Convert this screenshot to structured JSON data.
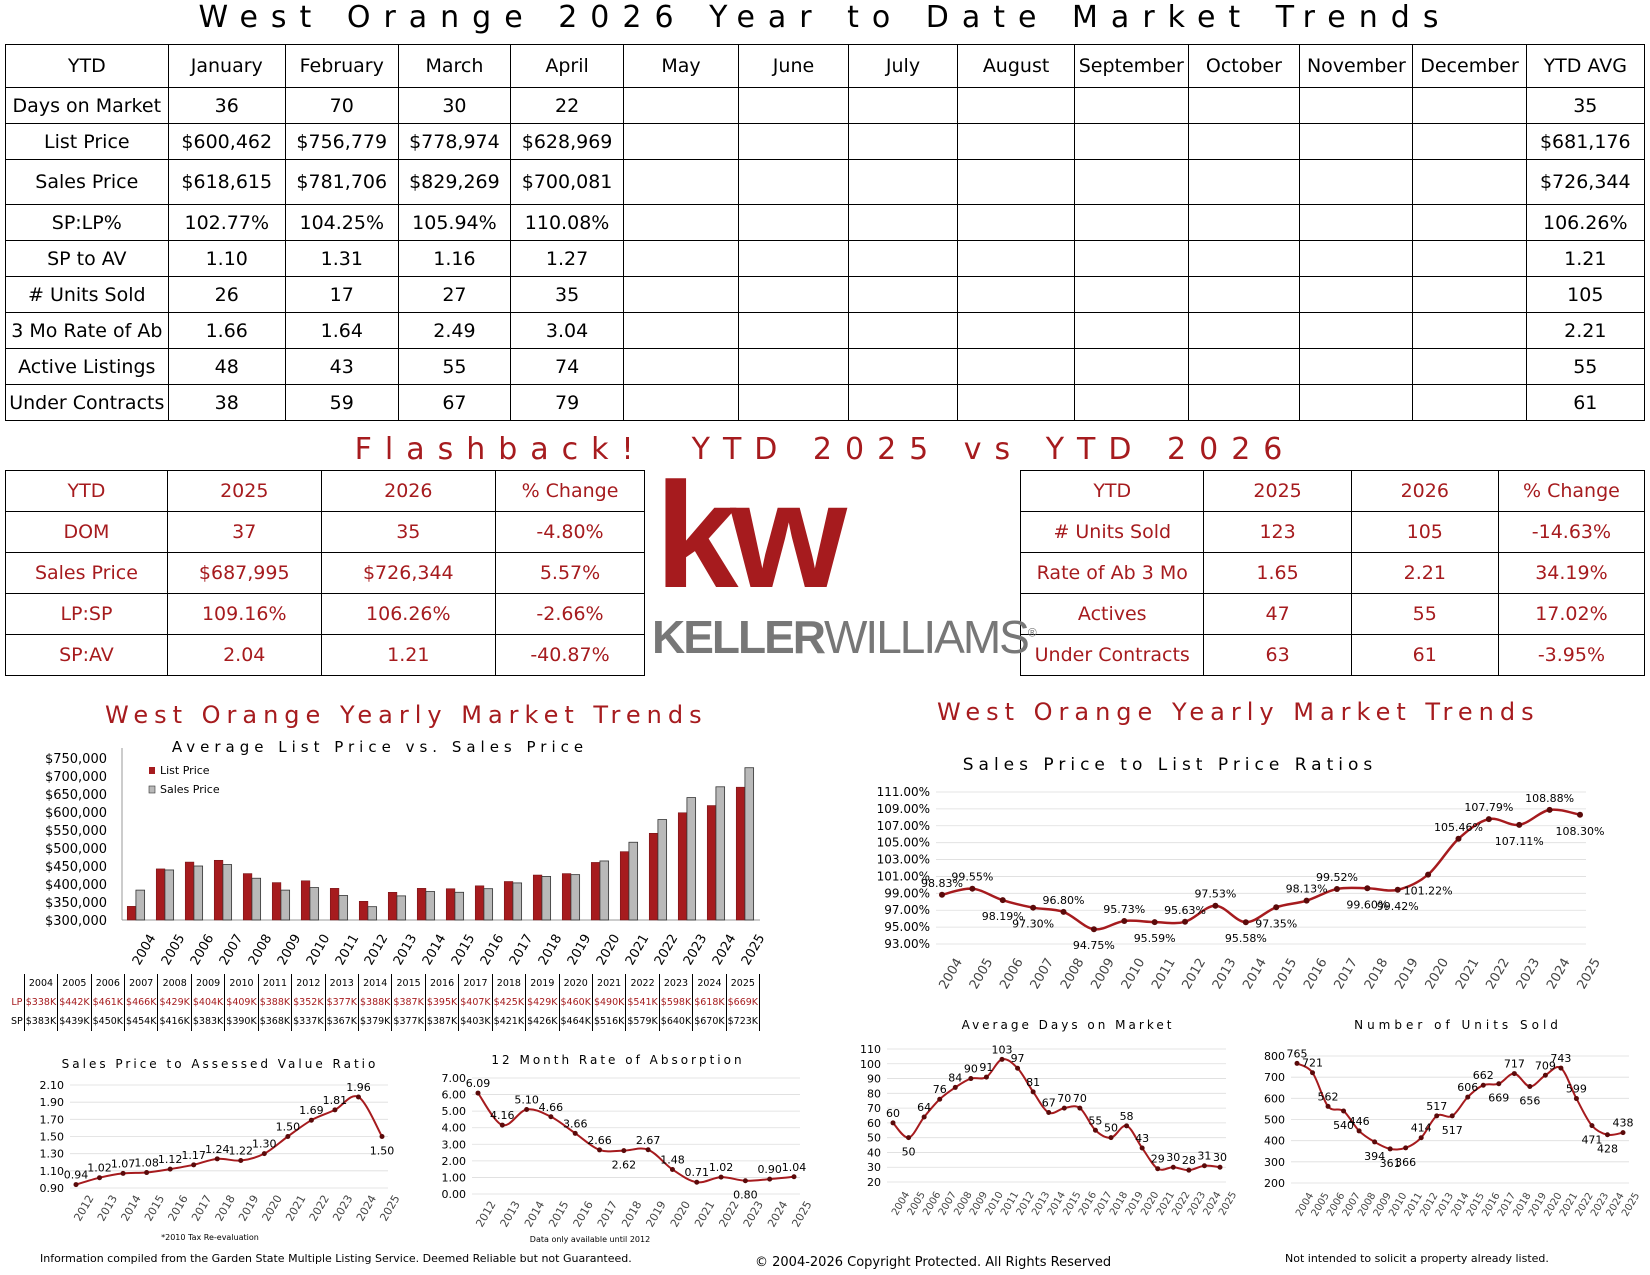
{
  "title": "West Orange 2026 Year to Date Market Trends",
  "ytd_table": {
    "headers": [
      "YTD",
      "January",
      "February",
      "March",
      "April",
      "May",
      "June",
      "July",
      "August",
      "September",
      "October",
      "November",
      "December",
      "YTD AVG"
    ],
    "rows": [
      {
        "label": "Days on Market",
        "values": [
          "36",
          "70",
          "30",
          "22",
          "",
          "",
          "",
          "",
          "",
          "",
          "",
          ""
        ],
        "avg": "35"
      },
      {
        "label": "List Price",
        "values": [
          "$600,462",
          "$756,779",
          "$778,974",
          "$628,969",
          "",
          "",
          "",
          "",
          "",
          "",
          "",
          ""
        ],
        "avg": "$681,176"
      },
      {
        "label": "Sales Price",
        "values": [
          "$618,615",
          "$781,706",
          "$829,269",
          "$700,081",
          "",
          "",
          "",
          "",
          "",
          "",
          "",
          ""
        ],
        "avg": "$726,344"
      },
      {
        "label": "SP:LP%",
        "values": [
          "102.77%",
          "104.25%",
          "105.94%",
          "110.08%",
          "",
          "",
          "",
          "",
          "",
          "",
          "",
          ""
        ],
        "avg": "106.26%"
      },
      {
        "label": "SP to AV",
        "values": [
          "1.10",
          "1.31",
          "1.16",
          "1.27",
          "",
          "",
          "",
          "",
          "",
          "",
          "",
          ""
        ],
        "avg": "1.21"
      },
      {
        "label": "# Units Sold",
        "values": [
          "26",
          "17",
          "27",
          "35",
          "",
          "",
          "",
          "",
          "",
          "",
          "",
          ""
        ],
        "avg": "105"
      },
      {
        "label": "3 Mo Rate of Ab",
        "values": [
          "1.66",
          "1.64",
          "2.49",
          "3.04",
          "",
          "",
          "",
          "",
          "",
          "",
          "",
          ""
        ],
        "avg": "2.21"
      },
      {
        "label": "Active Listings",
        "values": [
          "48",
          "43",
          "55",
          "74",
          "",
          "",
          "",
          "",
          "",
          "",
          "",
          ""
        ],
        "avg": "55"
      },
      {
        "label": "Under Contracts",
        "values": [
          "38",
          "59",
          "67",
          "79",
          "",
          "",
          "",
          "",
          "",
          "",
          "",
          ""
        ],
        "avg": "61"
      }
    ]
  },
  "flashback": {
    "title": "Flashback!  YTD 2025 vs YTD 2026",
    "left": {
      "headers": [
        "YTD",
        "2025",
        "2026",
        "% Change"
      ],
      "rows": [
        [
          "DOM",
          "37",
          "35",
          "-4.80%"
        ],
        [
          "Sales Price",
          "$687,995",
          "$726,344",
          "5.57%"
        ],
        [
          "LP:SP",
          "109.16%",
          "106.26%",
          "-2.66%"
        ],
        [
          "SP:AV",
          "2.04",
          "1.21",
          "-40.87%"
        ]
      ]
    },
    "right": {
      "headers": [
        "YTD",
        "2025",
        "2026",
        "% Change"
      ],
      "rows": [
        [
          "# Units Sold",
          "123",
          "105",
          "-14.63%"
        ],
        [
          "Rate of Ab 3 Mo",
          "1.65",
          "2.21",
          "34.19%"
        ],
        [
          "Actives",
          "47",
          "55",
          "17.02%"
        ],
        [
          "Under Contracts",
          "63",
          "61",
          "-3.95%"
        ]
      ]
    }
  },
  "logo": {
    "mark": "kw",
    "text_keller": "KELLER",
    "text_williams": "WILLIAMS",
    "reg": "®"
  },
  "section_titles": {
    "left": "West Orange Yearly Market Trends",
    "right": "West Orange Yearly Market Trends"
  },
  "years": [
    "2004",
    "2005",
    "2006",
    "2007",
    "2008",
    "2009",
    "2010",
    "2011",
    "2012",
    "2013",
    "2014",
    "2015",
    "2016",
    "2017",
    "2018",
    "2019",
    "2020",
    "2021",
    "2022",
    "2023",
    "2024",
    "2025"
  ],
  "colors": {
    "red": "#a61b1e",
    "gray": "#b0b0b0",
    "dark_red": "#8b0000"
  },
  "chart_data": [
    {
      "type": "bar",
      "title": "Average List Price vs. Sales Price",
      "categories": [
        "2004",
        "2005",
        "2006",
        "2007",
        "2008",
        "2009",
        "2010",
        "2011",
        "2012",
        "2013",
        "2014",
        "2015",
        "2016",
        "2017",
        "2018",
        "2019",
        "2020",
        "2021",
        "2022",
        "2023",
        "2024",
        "2025"
      ],
      "series": [
        {
          "name": "List Price",
          "values": [
            338,
            442,
            461,
            466,
            429,
            404,
            409,
            388,
            352,
            377,
            388,
            387,
            395,
            407,
            425,
            429,
            460,
            490,
            541,
            598,
            618,
            669
          ]
        },
        {
          "name": "Sales Price",
          "values": [
            383,
            439,
            450,
            454,
            416,
            383,
            390,
            368,
            337,
            367,
            379,
            377,
            387,
            403,
            421,
            426,
            464,
            516,
            579,
            640,
            670,
            723
          ]
        }
      ],
      "yticks": [
        "$300,000",
        "$350,000",
        "$400,000",
        "$450,000",
        "$500,000",
        "$550,000",
        "$600,000",
        "$650,000",
        "$700,000",
        "$750,000"
      ],
      "ylim": [
        300,
        750
      ],
      "legend": "top-left",
      "value_table": {
        "lp_label": "LP",
        "sp_label": "SP",
        "lp": [
          "$338K",
          "$442K",
          "$461K",
          "$466K",
          "$429K",
          "$404K",
          "$409K",
          "$388K",
          "$352K",
          "$377K",
          "$388K",
          "$387K",
          "$395K",
          "$407K",
          "$425K",
          "$429K",
          "$460K",
          "$490K",
          "$541K",
          "$598K",
          "$618K",
          "$669K"
        ],
        "sp": [
          "$383K",
          "$439K",
          "$450K",
          "$454K",
          "$416K",
          "$383K",
          "$390K",
          "$368K",
          "$337K",
          "$367K",
          "$379K",
          "$377K",
          "$387K",
          "$403K",
          "$421K",
          "$426K",
          "$464K",
          "$516K",
          "$579K",
          "$640K",
          "$670K",
          "$723K"
        ]
      }
    },
    {
      "type": "line",
      "title": "Sales Price to List Price Ratios",
      "x": [
        "2004",
        "2005",
        "2006",
        "2007",
        "2008",
        "2009",
        "2010",
        "2011",
        "2012",
        "2013",
        "2014",
        "2015",
        "2016",
        "2017",
        "2018",
        "2019",
        "2020",
        "2021",
        "2022",
        "2023",
        "2024",
        "2025"
      ],
      "values": [
        98.83,
        99.55,
        98.19,
        97.3,
        96.8,
        94.75,
        95.73,
        95.59,
        95.63,
        97.53,
        95.58,
        97.35,
        98.13,
        99.52,
        99.6,
        99.42,
        101.22,
        105.46,
        107.79,
        107.11,
        108.88,
        108.3
      ],
      "labels": [
        "98.83%",
        "99.55%",
        "98.19%",
        "97.30%",
        "96.80%",
        "94.75%",
        "95.73%",
        "95.59%",
        "95.63%",
        "97.53%",
        "95.58%",
        "97.35%",
        "98.13%",
        "99.52%",
        "99.60%",
        "99.42%",
        "101.22%",
        "105.46%",
        "107.79%",
        "107.11%",
        "108.88%",
        "108.30%"
      ],
      "yticks": [
        "93.00%",
        "95.00%",
        "97.00%",
        "99.00%",
        "101.00%",
        "103.00%",
        "105.00%",
        "107.00%",
        "109.00%",
        "111.00%"
      ],
      "ylim": [
        93,
        111
      ]
    },
    {
      "type": "line",
      "title": "Sales Price to Assessed Value Ratio",
      "x": [
        "2012",
        "2013",
        "2014",
        "2015",
        "2016",
        "2017",
        "2018",
        "2019",
        "2020",
        "2021",
        "2022",
        "2023",
        "2024",
        "2025"
      ],
      "values": [
        0.94,
        1.02,
        1.07,
        1.08,
        1.12,
        1.17,
        1.24,
        1.22,
        1.3,
        1.5,
        1.69,
        1.81,
        1.96,
        1.5
      ],
      "labels": [
        "0.94",
        "1.02",
        "1.07",
        "1.08",
        "1.12",
        "1.17",
        "1.24",
        "1.22",
        "1.30",
        "1.50",
        "1.69",
        "1.81",
        "1.96",
        "1.50"
      ],
      "yticks": [
        "0.90",
        "1.10",
        "1.30",
        "1.50",
        "1.70",
        "1.90",
        "2.10"
      ],
      "ylim": [
        0.9,
        2.1
      ],
      "note": "*2010 Tax Re-evaluation"
    },
    {
      "type": "line",
      "title": "12 Month Rate of Absorption",
      "x": [
        "2012",
        "2013",
        "2014",
        "2015",
        "2016",
        "2017",
        "2018",
        "2019",
        "2020",
        "2021",
        "2022",
        "2023",
        "2024",
        "2025"
      ],
      "values": [
        6.09,
        4.16,
        5.1,
        4.66,
        3.66,
        2.66,
        2.62,
        2.67,
        1.48,
        0.71,
        1.02,
        0.8,
        0.9,
        1.04
      ],
      "labels": [
        "6.09",
        "4.16",
        "5.10",
        "4.66",
        "3.66",
        "2.66",
        "2.62",
        "2.67",
        "1.48",
        "0.71",
        "1.02",
        "0.80",
        "0.90",
        "1.04"
      ],
      "yticks": [
        "0.00",
        "1.00",
        "2.00",
        "3.00",
        "4.00",
        "5.00",
        "6.00",
        "7.00"
      ],
      "ylim": [
        0,
        7
      ],
      "note": "Data only available until 2012"
    },
    {
      "type": "line",
      "title": "Average Days on Market",
      "x": [
        "2004",
        "2005",
        "2006",
        "2007",
        "2008",
        "2009",
        "2010",
        "2011",
        "2012",
        "2013",
        "2014",
        "2015",
        "2016",
        "2017",
        "2018",
        "2019",
        "2020",
        "2021",
        "2022",
        "2023",
        "2024",
        "2025"
      ],
      "values": [
        60,
        50,
        64,
        76,
        84,
        90,
        91,
        103,
        97,
        81,
        67,
        70,
        70,
        55,
        50,
        58,
        43,
        29,
        30,
        28,
        31,
        30
      ],
      "labels": [
        "60",
        "50",
        "64",
        "76",
        "84",
        "90",
        "91",
        "103",
        "97",
        "81",
        "67",
        "70",
        "70",
        "55",
        "50",
        "58",
        "43",
        "29",
        "30",
        "28",
        "31",
        "30"
      ],
      "yticks": [
        "20",
        "30",
        "40",
        "50",
        "60",
        "70",
        "80",
        "90",
        "100",
        "110"
      ],
      "ylim": [
        20,
        110
      ]
    },
    {
      "type": "line",
      "title": "Number of Units Sold",
      "x": [
        "2004",
        "2005",
        "2006",
        "2007",
        "2008",
        "2009",
        "2010",
        "2011",
        "2012",
        "2013",
        "2014",
        "2015",
        "2016",
        "2017",
        "2018",
        "2019",
        "2020",
        "2021",
        "2022",
        "2023",
        "2024",
        "2025"
      ],
      "values": [
        765,
        721,
        562,
        540,
        446,
        394,
        361,
        366,
        414,
        517,
        517,
        606,
        662,
        669,
        717,
        656,
        709,
        743,
        599,
        471,
        428,
        438
      ],
      "labels": [
        "765",
        "721",
        "562",
        "540",
        "446",
        "394",
        "361",
        "366",
        "414",
        "517",
        "517",
        "606",
        "662",
        "669",
        "717",
        "656",
        "709",
        "743",
        "599",
        "471",
        "428",
        "438"
      ],
      "yticks": [
        "200",
        "300",
        "400",
        "500",
        "600",
        "700",
        "800"
      ],
      "ylim": [
        200,
        800
      ]
    }
  ],
  "footer": {
    "left": "Information compiled from the Garden State Multiple Listing Service.  Deemed Reliable but not Guaranteed.",
    "center": "© 2004-2026 Copyright Protected.  All Rights Reserved",
    "right": "Not intended to solicit a property already listed."
  }
}
